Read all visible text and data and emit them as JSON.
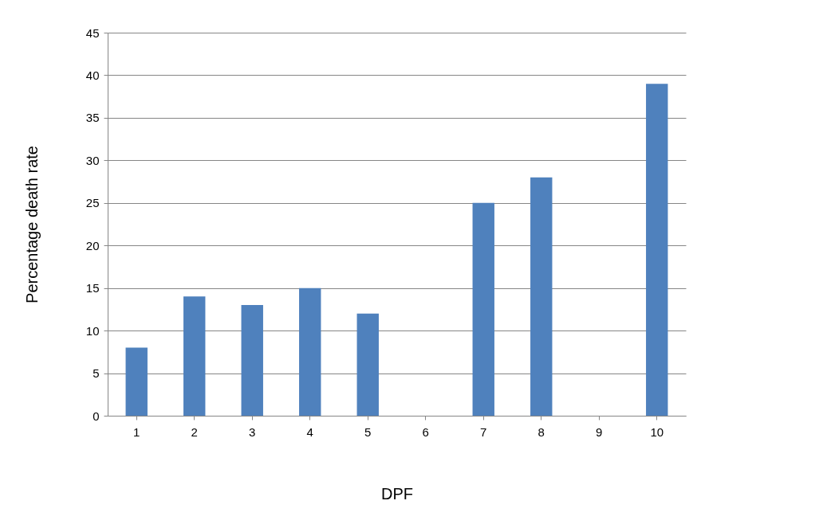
{
  "chart_data": {
    "type": "bar",
    "xlabel": "DPF",
    "ylabel": "Percentage death rate",
    "categories": [
      "1",
      "2",
      "3",
      "4",
      "5",
      "6",
      "7",
      "8",
      "9",
      "10"
    ],
    "values": [
      8,
      14,
      13,
      15,
      12,
      0,
      25,
      28,
      0,
      39
    ],
    "color": "#4f81bd",
    "ylim": [
      0,
      45
    ],
    "yticks": [
      0,
      5,
      10,
      15,
      20,
      25,
      30,
      35,
      40,
      45
    ],
    "grid": "y"
  }
}
